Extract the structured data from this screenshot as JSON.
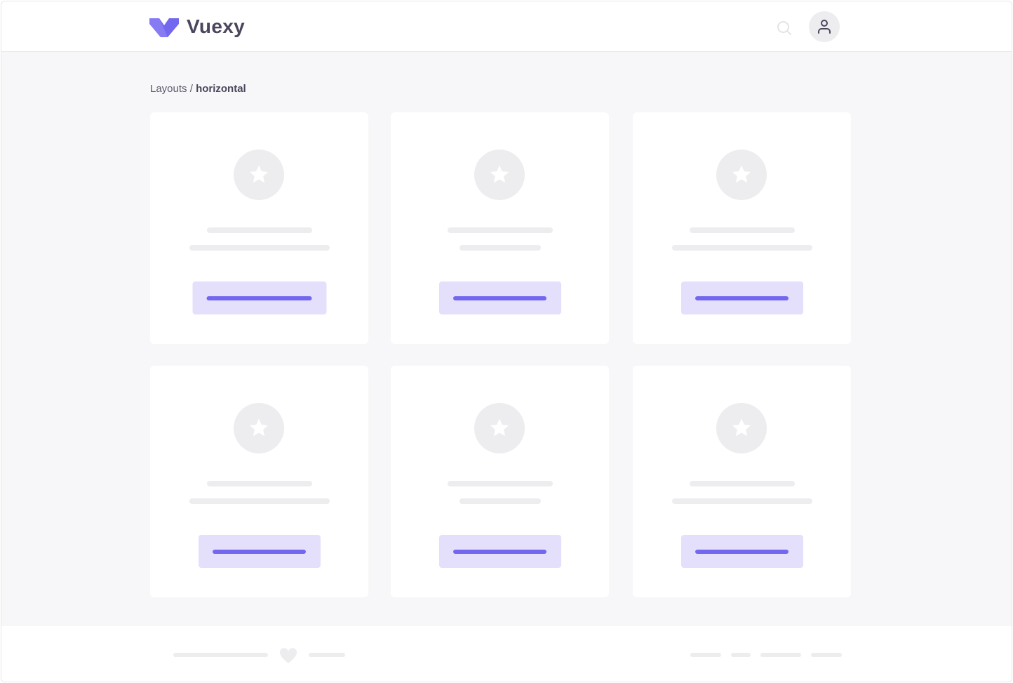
{
  "header": {
    "brand": "Vuexy",
    "logo_icon": "vuexy-logo",
    "search_icon": "search-icon",
    "avatar_icon": "user-icon"
  },
  "breadcrumb": {
    "parent": "Layouts",
    "separator": " / ",
    "current": "horizontal"
  },
  "colors": {
    "primary": "#7367f0",
    "primary_light": "#e4e0fc",
    "skeleton": "#ededf0",
    "text": "#4b465c",
    "background": "#f7f7f9"
  },
  "cards": [
    {
      "icon": "star-icon"
    },
    {
      "icon": "star-icon"
    },
    {
      "icon": "star-icon"
    },
    {
      "icon": "star-icon"
    },
    {
      "icon": "star-icon"
    },
    {
      "icon": "star-icon"
    }
  ],
  "footer": {
    "heart_icon": "heart-icon"
  }
}
